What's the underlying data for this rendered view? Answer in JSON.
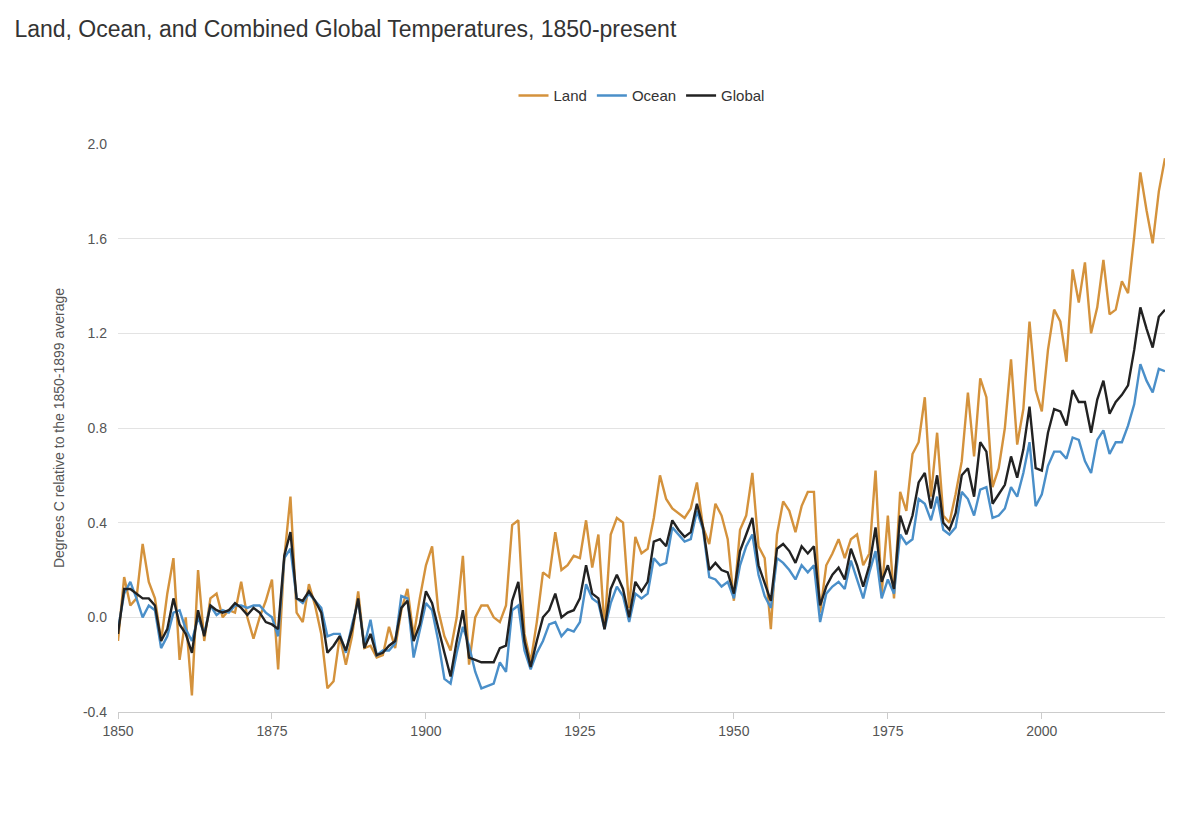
{
  "chart_data": {
    "type": "line",
    "title": "Land, Ocean, and Combined Global Temperatures, 1850-present",
    "y_label": "Degrees C relative to the 1850-1899 average",
    "x": [
      1850,
      1851,
      1852,
      1853,
      1854,
      1855,
      1856,
      1857,
      1858,
      1859,
      1860,
      1861,
      1862,
      1863,
      1864,
      1865,
      1866,
      1867,
      1868,
      1869,
      1870,
      1871,
      1872,
      1873,
      1874,
      1875,
      1876,
      1877,
      1878,
      1879,
      1880,
      1881,
      1882,
      1883,
      1884,
      1885,
      1886,
      1887,
      1888,
      1889,
      1890,
      1891,
      1892,
      1893,
      1894,
      1895,
      1896,
      1897,
      1898,
      1899,
      1900,
      1901,
      1902,
      1903,
      1904,
      1905,
      1906,
      1907,
      1908,
      1909,
      1910,
      1911,
      1912,
      1913,
      1914,
      1915,
      1916,
      1917,
      1918,
      1919,
      1920,
      1921,
      1922,
      1923,
      1924,
      1925,
      1926,
      1927,
      1928,
      1929,
      1930,
      1931,
      1932,
      1933,
      1934,
      1935,
      1936,
      1937,
      1938,
      1939,
      1940,
      1941,
      1942,
      1943,
      1944,
      1945,
      1946,
      1947,
      1948,
      1949,
      1950,
      1951,
      1952,
      1953,
      1954,
      1955,
      1956,
      1957,
      1958,
      1959,
      1960,
      1961,
      1962,
      1963,
      1964,
      1965,
      1966,
      1967,
      1968,
      1969,
      1970,
      1971,
      1972,
      1973,
      1974,
      1975,
      1976,
      1977,
      1978,
      1979,
      1980,
      1981,
      1982,
      1983,
      1984,
      1985,
      1986,
      1987,
      1988,
      1989,
      1990,
      1991,
      1992,
      1993,
      1994,
      1995,
      1996,
      1997,
      1998,
      1999,
      2000,
      2001,
      2002,
      2003,
      2004,
      2005,
      2006,
      2007,
      2008,
      2009,
      2010,
      2011,
      2012,
      2013,
      2014,
      2015,
      2016,
      2017,
      2018,
      2019,
      2020
    ],
    "series": [
      {
        "name": "Land",
        "color": "#d4923c",
        "values": [
          -0.1,
          0.17,
          0.05,
          0.08,
          0.31,
          0.15,
          0.08,
          -0.1,
          0.1,
          0.25,
          -0.18,
          0.0,
          -0.33,
          0.2,
          -0.1,
          0.08,
          0.1,
          0.0,
          0.03,
          0.02,
          0.15,
          0.0,
          -0.09,
          0.0,
          0.07,
          0.16,
          -0.22,
          0.25,
          0.51,
          0.02,
          -0.02,
          0.14,
          0.05,
          -0.07,
          -0.3,
          -0.27,
          -0.08,
          -0.2,
          -0.08,
          0.11,
          -0.13,
          -0.12,
          -0.17,
          -0.16,
          -0.04,
          -0.13,
          0.03,
          0.12,
          -0.08,
          0.08,
          0.22,
          0.3,
          0.03,
          -0.08,
          -0.14,
          0.0,
          0.26,
          -0.2,
          0.0,
          0.05,
          0.05,
          0.0,
          -0.02,
          0.05,
          0.39,
          0.41,
          -0.07,
          -0.19,
          -0.02,
          0.19,
          0.17,
          0.36,
          0.2,
          0.22,
          0.26,
          0.25,
          0.41,
          0.21,
          0.35,
          -0.05,
          0.35,
          0.42,
          0.4,
          0.04,
          0.34,
          0.27,
          0.29,
          0.42,
          0.6,
          0.5,
          0.46,
          0.44,
          0.42,
          0.46,
          0.57,
          0.38,
          0.31,
          0.48,
          0.43,
          0.33,
          0.07,
          0.37,
          0.43,
          0.61,
          0.3,
          0.25,
          -0.05,
          0.35,
          0.49,
          0.45,
          0.36,
          0.47,
          0.53,
          0.53,
          0.02,
          0.22,
          0.27,
          0.33,
          0.25,
          0.33,
          0.35,
          0.22,
          0.27,
          0.62,
          0.1,
          0.43,
          0.08,
          0.53,
          0.45,
          0.69,
          0.74,
          0.93,
          0.51,
          0.78,
          0.43,
          0.4,
          0.52,
          0.66,
          0.95,
          0.68,
          1.01,
          0.93,
          0.55,
          0.63,
          0.8,
          1.09,
          0.73,
          0.88,
          1.25,
          0.96,
          0.87,
          1.13,
          1.3,
          1.25,
          1.08,
          1.47,
          1.33,
          1.5,
          1.2,
          1.31,
          1.51,
          1.28,
          1.3,
          1.42,
          1.37,
          1.61,
          1.88,
          1.72,
          1.58,
          1.8,
          1.94
        ]
      },
      {
        "name": "Ocean",
        "color": "#4a8fc9",
        "values": [
          -0.05,
          0.1,
          0.15,
          0.08,
          0.0,
          0.05,
          0.03,
          -0.13,
          -0.08,
          0.02,
          0.03,
          -0.05,
          -0.1,
          0.0,
          -0.07,
          0.05,
          0.01,
          0.03,
          0.02,
          0.05,
          0.05,
          0.04,
          0.05,
          0.05,
          0.02,
          0.0,
          -0.08,
          0.25,
          0.29,
          0.08,
          0.06,
          0.1,
          0.07,
          0.04,
          -0.08,
          -0.07,
          -0.07,
          -0.15,
          -0.03,
          0.07,
          -0.12,
          -0.01,
          -0.16,
          -0.14,
          -0.14,
          -0.11,
          0.09,
          0.08,
          -0.17,
          -0.06,
          0.06,
          0.03,
          -0.1,
          -0.26,
          -0.28,
          -0.15,
          -0.04,
          -0.12,
          -0.23,
          -0.3,
          -0.29,
          -0.28,
          -0.19,
          -0.23,
          0.03,
          0.05,
          -0.14,
          -0.22,
          -0.15,
          -0.1,
          -0.03,
          -0.02,
          -0.08,
          -0.05,
          -0.06,
          -0.02,
          0.14,
          0.08,
          0.06,
          -0.05,
          0.06,
          0.13,
          0.09,
          -0.02,
          0.1,
          0.08,
          0.1,
          0.25,
          0.22,
          0.23,
          0.38,
          0.35,
          0.32,
          0.33,
          0.45,
          0.37,
          0.17,
          0.16,
          0.13,
          0.15,
          0.08,
          0.22,
          0.3,
          0.35,
          0.18,
          0.09,
          0.04,
          0.25,
          0.23,
          0.2,
          0.16,
          0.22,
          0.19,
          0.22,
          -0.02,
          0.1,
          0.13,
          0.15,
          0.12,
          0.24,
          0.16,
          0.08,
          0.19,
          0.28,
          0.08,
          0.16,
          0.1,
          0.35,
          0.31,
          0.33,
          0.5,
          0.48,
          0.41,
          0.51,
          0.37,
          0.35,
          0.38,
          0.53,
          0.5,
          0.43,
          0.54,
          0.55,
          0.42,
          0.43,
          0.46,
          0.55,
          0.51,
          0.61,
          0.74,
          0.47,
          0.52,
          0.64,
          0.7,
          0.7,
          0.67,
          0.76,
          0.75,
          0.66,
          0.61,
          0.75,
          0.79,
          0.69,
          0.74,
          0.74,
          0.81,
          0.9,
          1.07,
          1.0,
          0.95,
          1.05,
          1.04
        ]
      },
      {
        "name": "Global",
        "color": "#222222",
        "values": [
          -0.07,
          0.12,
          0.12,
          0.1,
          0.08,
          0.08,
          0.05,
          -0.1,
          -0.05,
          0.08,
          -0.03,
          -0.07,
          -0.15,
          0.03,
          -0.08,
          0.05,
          0.03,
          0.02,
          0.03,
          0.06,
          0.04,
          0.01,
          0.04,
          0.02,
          -0.02,
          -0.03,
          -0.05,
          0.26,
          0.36,
          0.08,
          0.07,
          0.11,
          0.07,
          0.02,
          -0.15,
          -0.12,
          -0.08,
          -0.14,
          -0.05,
          0.08,
          -0.13,
          -0.07,
          -0.16,
          -0.15,
          -0.12,
          -0.1,
          0.04,
          0.07,
          -0.1,
          -0.03,
          0.11,
          0.06,
          -0.05,
          -0.15,
          -0.25,
          -0.1,
          0.03,
          -0.17,
          -0.18,
          -0.19,
          -0.19,
          -0.19,
          -0.13,
          -0.12,
          0.07,
          0.15,
          -0.1,
          -0.21,
          -0.1,
          0.0,
          0.03,
          0.1,
          0.0,
          0.02,
          0.03,
          0.08,
          0.22,
          0.1,
          0.08,
          -0.05,
          0.12,
          0.18,
          0.12,
          0.0,
          0.15,
          0.11,
          0.15,
          0.32,
          0.33,
          0.3,
          0.41,
          0.37,
          0.34,
          0.36,
          0.48,
          0.38,
          0.2,
          0.23,
          0.2,
          0.19,
          0.1,
          0.28,
          0.35,
          0.42,
          0.22,
          0.14,
          0.07,
          0.29,
          0.31,
          0.28,
          0.23,
          0.3,
          0.27,
          0.3,
          0.05,
          0.13,
          0.18,
          0.21,
          0.16,
          0.29,
          0.22,
          0.13,
          0.22,
          0.38,
          0.15,
          0.22,
          0.12,
          0.43,
          0.35,
          0.43,
          0.57,
          0.61,
          0.46,
          0.6,
          0.4,
          0.37,
          0.44,
          0.6,
          0.63,
          0.51,
          0.74,
          0.7,
          0.48,
          0.52,
          0.56,
          0.68,
          0.59,
          0.71,
          0.89,
          0.63,
          0.62,
          0.78,
          0.88,
          0.87,
          0.81,
          0.96,
          0.91,
          0.91,
          0.78,
          0.92,
          1.0,
          0.86,
          0.91,
          0.94,
          0.98,
          1.13,
          1.31,
          1.22,
          1.14,
          1.27,
          1.3
        ]
      }
    ],
    "xlim": [
      1850,
      2020
    ],
    "xticks": [
      1850,
      1875,
      1900,
      1925,
      1950,
      1975,
      2000
    ],
    "ylim": [
      -0.4,
      2.0
    ],
    "yticks": [
      -0.4,
      {
        "value": 0,
        "label": "0.0"
      },
      0.4,
      0.8,
      1.2,
      1.6,
      {
        "value": 2,
        "label": "2.0"
      }
    ],
    "grid": true,
    "legend": "top"
  }
}
